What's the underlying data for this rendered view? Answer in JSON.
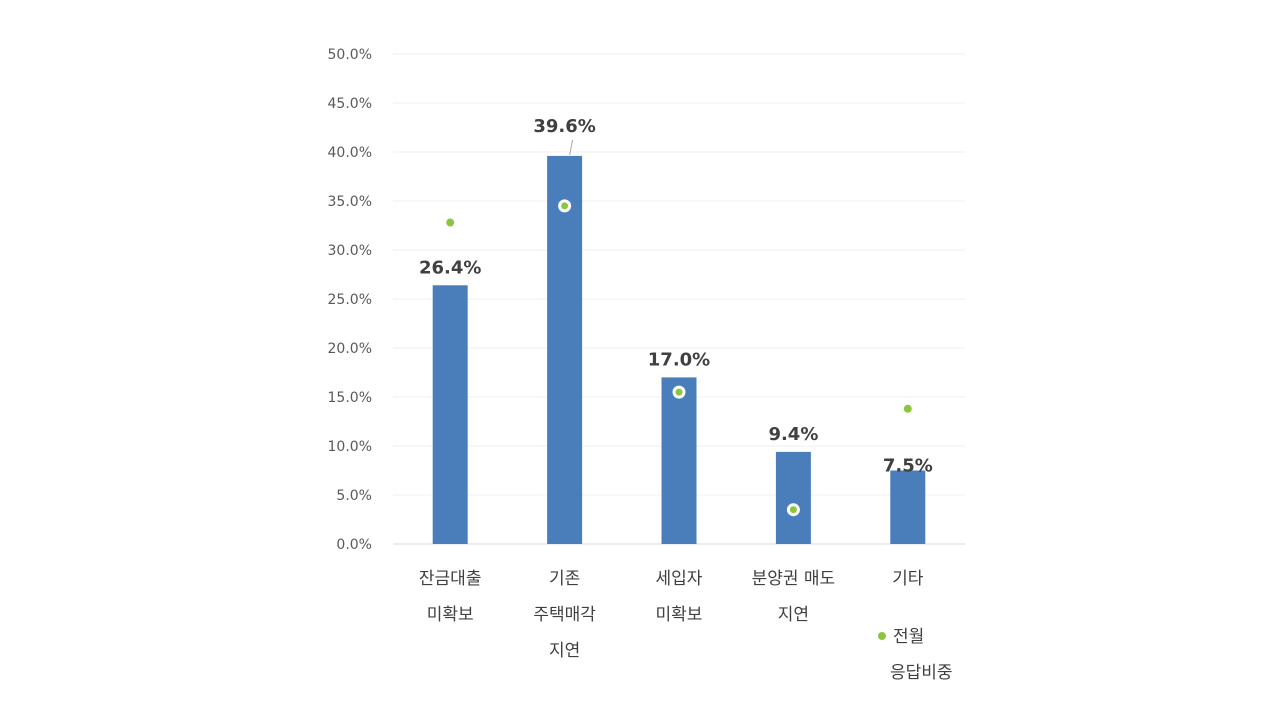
{
  "chart_data": {
    "type": "bar",
    "categories": [
      [
        "잔금대출",
        "미확보"
      ],
      [
        "기존",
        "주택매각",
        "지연"
      ],
      [
        "세입자",
        "미확보"
      ],
      [
        "분양권 매도",
        "지연"
      ],
      [
        "기타"
      ]
    ],
    "series": [
      {
        "type": "bar",
        "values": [
          26.4,
          39.6,
          17.0,
          9.4,
          7.5
        ],
        "labels": [
          "26.4%",
          "39.6%",
          "17.0%",
          "9.4%",
          "7.5%"
        ],
        "color": "#4a7ebb"
      },
      {
        "type": "scatter",
        "name": [
          "전월",
          "응답비중"
        ],
        "values": [
          32.8,
          34.5,
          15.5,
          3.5,
          13.8
        ],
        "color": "#8cc63f"
      }
    ],
    "ylim": [
      0,
      50
    ],
    "yticks": [
      "0.0%",
      "5.0%",
      "10.0%",
      "15.0%",
      "20.0%",
      "25.0%",
      "30.0%",
      "35.0%",
      "40.0%",
      "45.0%",
      "50.0%"
    ],
    "grid": true,
    "legend": "bottom-right"
  }
}
